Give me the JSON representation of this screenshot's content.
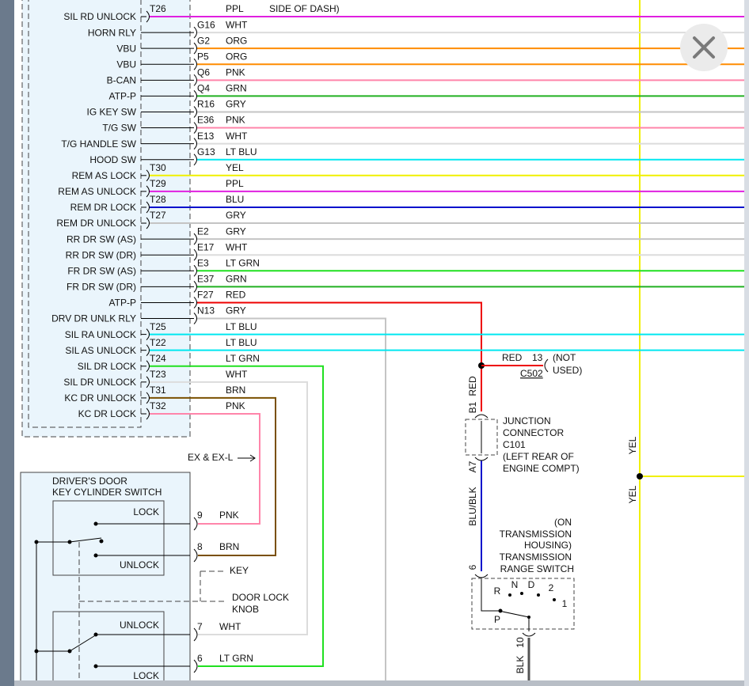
{
  "rows": [
    {
      "label": "SIL RD UNLOCK",
      "pin": "T26",
      "wire": "PPL",
      "color": "#e020e0"
    },
    {
      "label": "HORN RLY",
      "pin": "G16",
      "wire": "WHT",
      "color": "#dcdcdc"
    },
    {
      "label": "VBU",
      "pin": "G2",
      "wire": "ORG",
      "color": "#ff8c00"
    },
    {
      "label": "VBU",
      "pin": "P5",
      "wire": "ORG",
      "color": "#ff8c00"
    },
    {
      "label": "B-CAN",
      "pin": "Q6",
      "wire": "PNK",
      "color": "#ff85aa"
    },
    {
      "label": "ATP-P",
      "pin": "Q4",
      "wire": "GRN",
      "color": "#22b022"
    },
    {
      "label": "IG KEY SW",
      "pin": "R16",
      "wire": "GRY",
      "color": "#c4c4c4"
    },
    {
      "label": "T/G SW",
      "pin": "E36",
      "wire": "PNK",
      "color": "#ff85aa"
    },
    {
      "label": "T/G HANDLE SW",
      "pin": "E13",
      "wire": "WHT",
      "color": "#dcdcdc"
    },
    {
      "label": "HOOD SW",
      "pin": "G13",
      "wire": "LT BLU",
      "color": "#00e8f0"
    },
    {
      "label": "REM AS LOCK",
      "pin": "T30",
      "wire": "YEL",
      "color": "#f0f000"
    },
    {
      "label": "REM AS UNLOCK",
      "pin": "T29",
      "wire": "PPL",
      "color": "#e020e0"
    },
    {
      "label": "REM DR LOCK",
      "pin": "T28",
      "wire": "BLU",
      "color": "#0010cc"
    },
    {
      "label": "REM DR UNLOCK",
      "pin": "T27",
      "wire": "GRY",
      "color": "#c4c4c4"
    },
    {
      "label": "RR DR SW (AS)",
      "pin": "E2",
      "wire": "GRY",
      "color": "#c4c4c4"
    },
    {
      "label": "RR DR SW (DR)",
      "pin": "E17",
      "wire": "WHT",
      "color": "#dcdcdc"
    },
    {
      "label": "FR DR SW (AS)",
      "pin": "E3",
      "wire": "LT GRN",
      "color": "#20e020"
    },
    {
      "label": "FR DR SW (DR)",
      "pin": "E37",
      "wire": "GRN",
      "color": "#22b022"
    },
    {
      "label": "ATP-P",
      "pin": "F27",
      "wire": "RED",
      "color": "#ee0000"
    },
    {
      "label": "DRV DR UNLK RLY",
      "pin": "N13",
      "wire": "GRY",
      "color": "#c4c4c4"
    },
    {
      "label": "SIL RA UNLOCK",
      "pin": "T25",
      "wire": "LT BLU",
      "color": "#00e8f0"
    },
    {
      "label": "SIL AS UNLOCK",
      "pin": "T22",
      "wire": "LT BLU",
      "color": "#00e8f0"
    },
    {
      "label": "SIL DR LOCK",
      "pin": "T24",
      "wire": "LT GRN",
      "color": "#20e020"
    },
    {
      "label": "SIL DR UNLOCK",
      "pin": "T23",
      "wire": "WHT",
      "color": "#dcdcdc"
    },
    {
      "label": "KC DR UNLOCK",
      "pin": "T31",
      "wire": "BRN",
      "color": "#7a5000"
    },
    {
      "label": "KC DR LOCK",
      "pin": "T32",
      "wire": "PNK",
      "color": "#ff85aa"
    }
  ],
  "top_note": "SIDE OF DASH)",
  "c502": {
    "wire": "RED",
    "pin": "13",
    "note": [
      "(NOT",
      "USED)"
    ],
    "connector": "C502"
  },
  "junction": {
    "wire_top": "RED",
    "pin_top": "B1",
    "pin_bottom": "A7",
    "wire_bottom": "BLU/BLK",
    "label": [
      "JUNCTION",
      "CONNECTOR",
      "C101",
      "(LEFT REAR OF",
      "ENGINE COMPT)"
    ]
  },
  "transmission": {
    "note": [
      "(ON",
      "TRANSMISSION",
      "HOUSING)"
    ],
    "label": [
      "TRANSMISSION",
      "RANGE SWITCH"
    ],
    "pin_in": "6",
    "positions": [
      "R",
      "N",
      "D",
      "2",
      "1",
      "P"
    ],
    "pin_out": "10",
    "wire_out": "BLK"
  },
  "yel": [
    "YEL",
    "YEL"
  ],
  "ex_note": "EX & EX-L",
  "door_switch": {
    "title": [
      "DRIVER'S DOOR",
      "KEY CYLINDER SWITCH"
    ],
    "upper": [
      "LOCK",
      "UNLOCK"
    ],
    "lower": [
      "UNLOCK",
      "LOCK"
    ],
    "pins": [
      {
        "pin": "9",
        "wire": "PNK"
      },
      {
        "pin": "8",
        "wire": "BRN"
      },
      {
        "pin": "7",
        "wire": "WHT"
      },
      {
        "pin": "6",
        "wire": "LT GRN"
      }
    ],
    "key": "KEY",
    "knob": [
      "DOOR LOCK",
      "KNOB"
    ]
  }
}
